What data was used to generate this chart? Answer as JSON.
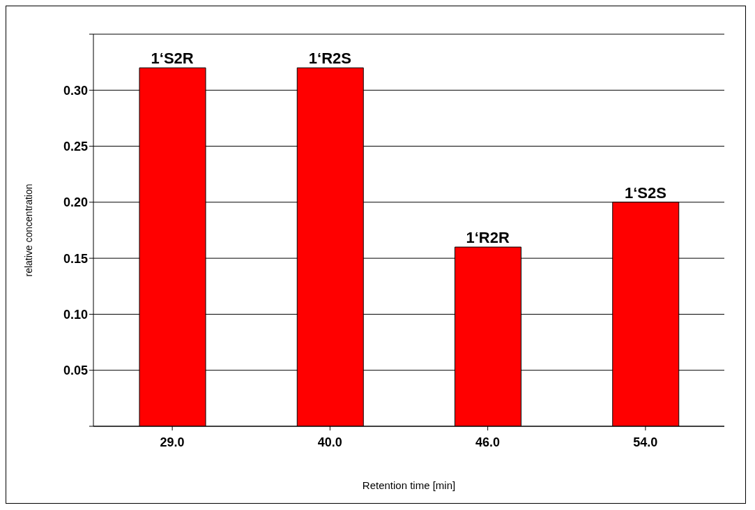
{
  "chart_data": {
    "type": "bar",
    "xlabel": "Retention time [min]",
    "ylabel": "relative concentration",
    "categories": [
      "29.0",
      "40.0",
      "46.0",
      "54.0"
    ],
    "values": [
      0.32,
      0.32,
      0.16,
      0.2
    ],
    "color": "#ff0000",
    "ylim": [
      0,
      0.35
    ],
    "yticks": [
      {
        "value": 0,
        "label": null
      },
      {
        "value": 0.05,
        "label": "0.05"
      },
      {
        "value": 0.1,
        "label": "0.10"
      },
      {
        "value": 0.15,
        "label": "0.15"
      },
      {
        "value": 0.2,
        "label": "0.20"
      },
      {
        "value": 0.25,
        "label": "0.25"
      },
      {
        "value": 0.3,
        "label": "0.30"
      },
      {
        "value": 0.35,
        "label": null
      }
    ],
    "grid": "y",
    "legend": false,
    "annotations": [
      {
        "text": "1‘S2R",
        "x": "29.0",
        "y": 0.32
      },
      {
        "text": "1‘R2S",
        "x": "40.0",
        "y": 0.32
      },
      {
        "text": "1‘R2R",
        "x": "46.0",
        "y": 0.16
      },
      {
        "text": "1‘S2S",
        "x": "54.0",
        "y": 0.2
      }
    ]
  }
}
